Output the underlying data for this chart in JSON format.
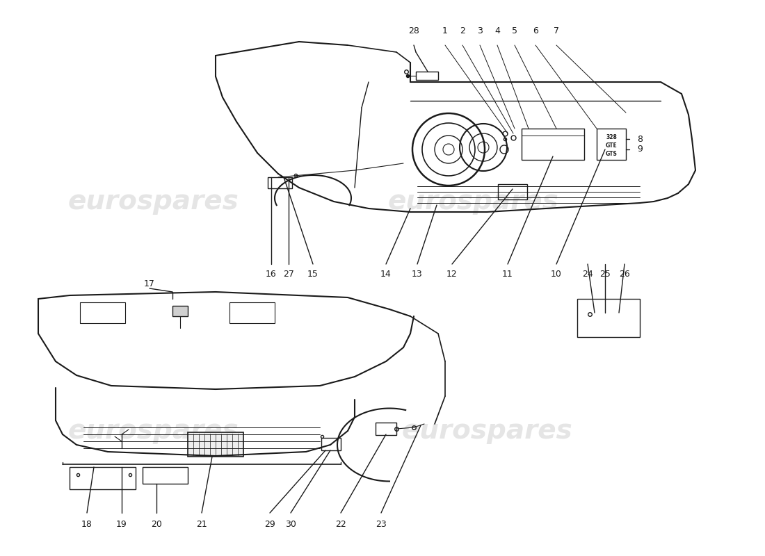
{
  "background_color": "#ffffff",
  "line_color": "#1a1a1a",
  "text_color": "#1a1a1a",
  "watermark": "eurospares",
  "fig_w": 11.0,
  "fig_h": 8.0,
  "dpi": 100
}
